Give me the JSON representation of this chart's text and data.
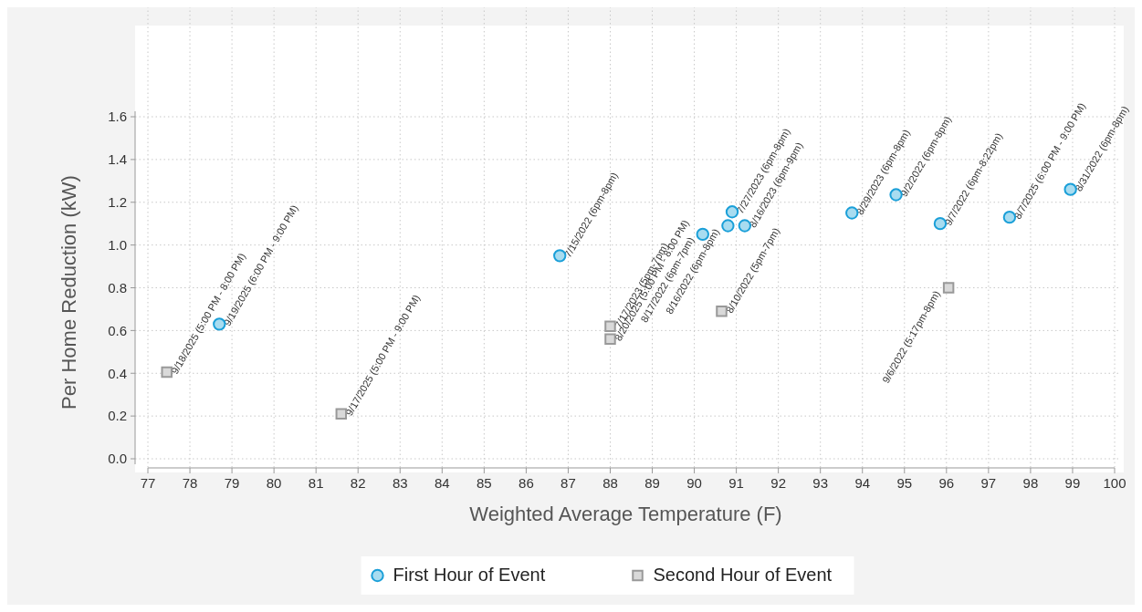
{
  "chart_data": {
    "type": "scatter",
    "xlabel": "Weighted Average Temperature (F)",
    "ylabel": "Per Home Reduction (kW)",
    "xlim": [
      77,
      100
    ],
    "xticks": [
      77,
      78,
      79,
      80,
      81,
      82,
      83,
      84,
      85,
      86,
      87,
      88,
      89,
      90,
      91,
      92,
      93,
      94,
      95,
      96,
      97,
      98,
      99,
      100
    ],
    "ylim": [
      0,
      1.6
    ],
    "yticks": [
      {
        "value": 0,
        "label": "0.0"
      },
      {
        "value": 0.2,
        "label": "0.2"
      },
      {
        "value": 0.4,
        "label": "0.4"
      },
      {
        "value": 0.6,
        "label": "0.6"
      },
      {
        "value": 0.8,
        "label": "0.8"
      },
      {
        "value": 1.0,
        "label": "1.0"
      },
      {
        "value": 1.2,
        "label": "1.2"
      },
      {
        "value": 1.4,
        "label": "1.4"
      },
      {
        "value": 1.6,
        "label": "1.6"
      }
    ],
    "grid": true,
    "legend": "bottom",
    "series": [
      {
        "name": "First Hour of Event",
        "color": "#a8dcf0",
        "marker": "circle",
        "x": [
          78.7,
          86.8,
          90.2,
          90.8,
          90.9,
          91.2,
          93.75,
          94.8,
          95.85,
          97.5,
          98.95
        ],
        "values": [
          0.63,
          0.95,
          1.05,
          1.09,
          1.155,
          1.09,
          1.15,
          1.235,
          1.1,
          1.13,
          1.26
        ]
      },
      {
        "name": "Second Hour of Event",
        "color": "#d9d9d9",
        "marker": "square",
        "x": [
          77.45,
          81.6,
          88,
          88,
          90.65,
          96.05
        ],
        "values": [
          0.405,
          0.21,
          0.62,
          0.56,
          0.69,
          0.8
        ]
      }
    ],
    "annotations": [
      {
        "text": "9/19/2025 (6:00 PM - 9:00 PM)",
        "x": 78.7,
        "y": 0.63
      },
      {
        "text": "7/15/2022 (6pm-8pm)",
        "x": 86.8,
        "y": 0.95
      },
      {
        "text": "8/17/2022 (6pm-7pm)",
        "x": 90.2,
        "y": 1.05
      },
      {
        "text": "8/16/2022 (6pm-8pm)",
        "x": 90.8,
        "y": 1.09
      },
      {
        "text": "7/27/2023 (6pm-8pm)",
        "x": 90.9,
        "y": 1.155
      },
      {
        "text": "8/16/2023 (6pm-9pm)",
        "x": 91.2,
        "y": 1.09
      },
      {
        "text": "8/29/2023 (6pm-8pm)",
        "x": 93.75,
        "y": 1.15
      },
      {
        "text": "9/2/2022 (6pm-8pm)",
        "x": 94.8,
        "y": 1.235
      },
      {
        "text": "9/7/2022 (6pm-8:22pm)",
        "x": 95.85,
        "y": 1.1
      },
      {
        "text": "8/7/2025 (6:00 PM - 9:00 PM)",
        "x": 97.5,
        "y": 1.13
      },
      {
        "text": "8/31/2022 (6pm-8pm)",
        "x": 98.95,
        "y": 1.26
      },
      {
        "text": "9/18/2025 (5:00 PM - 8:00 PM)",
        "x": 77.45,
        "y": 0.405
      },
      {
        "text": "9/17/2025 (5:00 PM - 9:00 PM)",
        "x": 81.6,
        "y": 0.21
      },
      {
        "text": "7/17/2023 (5pm-7pm)",
        "x": 88,
        "y": 0.62
      },
      {
        "text": "8/20/2025 (5:00 PM - 8:00 PM)",
        "x": 88,
        "y": 0.56
      },
      {
        "text": "8/10/2022 (5pm-7pm)",
        "x": 90.65,
        "y": 0.69
      },
      {
        "text": "9/6/2022 (5:17pm-8pm)",
        "x": 96.05,
        "y": 0.8
      }
    ]
  }
}
